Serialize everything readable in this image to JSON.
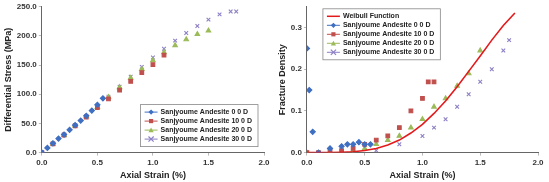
{
  "chart_data": [
    {
      "type": "scatter",
      "x_label": "Axial Strain (%)",
      "y_label": "Differential Stress (MPa)",
      "xlim": [
        0,
        2.0
      ],
      "xticks": [
        {
          "value": 0,
          "label": "0.0"
        },
        0.5,
        {
          "value": 1,
          "label": "1.0"
        },
        1.5,
        {
          "value": 2,
          "label": "2.0"
        }
      ],
      "ylim": [
        0,
        250
      ],
      "yticks": [
        {
          "value": 0,
          "label": "0.0"
        },
        {
          "value": 50,
          "label": "50.0"
        },
        {
          "value": 100,
          "label": "100.0"
        },
        {
          "value": 150,
          "label": "150.0"
        },
        {
          "value": 200,
          "label": "200.0"
        },
        {
          "value": 250,
          "label": "250.0"
        }
      ],
      "grid": false,
      "legend": "lower right",
      "series": [
        {
          "name": "Sanjyoume Andesite 0 0 D",
          "color": "#3f6fc2",
          "marker": "diamond",
          "x": [
            0,
            0.05,
            0.1,
            0.15,
            0.2,
            0.25,
            0.3,
            0.35,
            0.4,
            0.45,
            0.5,
            0.55
          ],
          "values": [
            0,
            8,
            16,
            24,
            31,
            39,
            47,
            55,
            63,
            72,
            82,
            93
          ]
        },
        {
          "name": "Sanjyoume Andesite 10 0 D",
          "color": "#c0504d",
          "marker": "square",
          "x": [
            0,
            0.1,
            0.2,
            0.3,
            0.4,
            0.5,
            0.6,
            0.7,
            0.8,
            0.9,
            1.0,
            1.1
          ],
          "values": [
            0,
            15,
            30,
            46,
            61,
            77,
            92,
            107,
            122,
            137,
            151,
            167
          ]
        },
        {
          "name": "Sanjyoume Andesite 20 0 D",
          "color": "#9bbb59",
          "marker": "triangle",
          "x": [
            0,
            0.1,
            0.2,
            0.3,
            0.4,
            0.5,
            0.6,
            0.7,
            0.8,
            0.9,
            1.0,
            1.1,
            1.2,
            1.3,
            1.4,
            1.5
          ],
          "values": [
            0,
            15,
            30,
            46,
            62,
            78,
            95,
            112,
            128,
            143,
            158,
            172,
            184,
            194,
            203,
            209
          ]
        },
        {
          "name": "Sanjyoume Andesite 30 0 D",
          "color": "#8c7fc4",
          "marker": "x",
          "x": [
            0,
            0.1,
            0.2,
            0.3,
            0.4,
            0.5,
            0.6,
            0.7,
            0.8,
            0.9,
            1.0,
            1.1,
            1.2,
            1.3,
            1.4,
            1.5,
            1.6,
            1.7,
            1.75
          ],
          "values": [
            0,
            15,
            31,
            47,
            63,
            79,
            96,
            113,
            130,
            147,
            163,
            178,
            192,
            205,
            217,
            228,
            237,
            242,
            242
          ]
        }
      ]
    },
    {
      "type": "scatter",
      "x_label": "Axial Strain (%)",
      "y_label": "Fracture Density",
      "xlim": [
        0,
        2.0
      ],
      "xticks": [
        {
          "value": 0,
          "label": "0.0"
        },
        0.5,
        {
          "value": 1,
          "label": "1.0"
        },
        1.5,
        {
          "value": 2,
          "label": "2.0"
        }
      ],
      "ylim": [
        0,
        0.35
      ],
      "yticks": [
        {
          "value": 0,
          "label": "0.0"
        },
        0.1,
        0.2,
        0.3
      ],
      "grid": false,
      "legend": "upper left",
      "series": [
        {
          "name": "Weibull Function",
          "color": "#e31a1c",
          "type": "line",
          "marker": "none",
          "line_style": "solid",
          "x": [
            0,
            0.1,
            0.2,
            0.3,
            0.4,
            0.5,
            0.6,
            0.7,
            0.8,
            0.9,
            1.0,
            1.1,
            1.2,
            1.3,
            1.4,
            1.5,
            1.6,
            1.7,
            1.8
          ],
          "values": [
            0,
            0,
            0,
            0.001,
            0.002,
            0.005,
            0.01,
            0.018,
            0.03,
            0.047,
            0.068,
            0.094,
            0.124,
            0.158,
            0.195,
            0.232,
            0.27,
            0.305,
            0.335
          ]
        },
        {
          "name": "Sanjyoume Andesite 0 0 D",
          "color": "#3f6fc2",
          "marker": "diamond",
          "x": [
            0,
            0.02,
            0.05,
            0.1,
            0.2,
            0.3,
            0.35,
            0.4,
            0.45,
            0.5,
            0.55
          ],
          "values": [
            0.25,
            0.15,
            0.05,
            0,
            0.01,
            0.015,
            0.02,
            0.02,
            0.025,
            0.02,
            0.02
          ]
        },
        {
          "name": "Sanjyoume Andesite 10 0 D",
          "color": "#c0504d",
          "marker": "square",
          "x": [
            0,
            0.1,
            0.2,
            0.3,
            0.4,
            0.5,
            0.6,
            0.7,
            0.8,
            0.9,
            1.0,
            1.05,
            1.1
          ],
          "values": [
            0,
            0,
            0.005,
            0.005,
            0.01,
            0.02,
            0.03,
            0.04,
            0.06,
            0.1,
            0.13,
            0.17,
            0.17
          ]
        },
        {
          "name": "Sanjyoume Andesite 20 0 D",
          "color": "#9bbb59",
          "marker": "triangle",
          "x": [
            0,
            0.2,
            0.4,
            0.5,
            0.6,
            0.7,
            0.8,
            0.9,
            1.0,
            1.1,
            1.2,
            1.3,
            1.4,
            1.5
          ],
          "values": [
            0,
            0,
            0.005,
            0.01,
            0.02,
            0.03,
            0.04,
            0.06,
            0.08,
            0.11,
            0.13,
            0.16,
            0.19,
            0.245
          ]
        },
        {
          "name": "Sanjyoume Andesite 30 0 D",
          "color": "#8c7fc4",
          "marker": "x",
          "x": [
            0,
            0.2,
            0.4,
            0.6,
            0.8,
            1.0,
            1.1,
            1.2,
            1.3,
            1.4,
            1.5,
            1.6,
            1.7,
            1.75
          ],
          "values": [
            0,
            0,
            0,
            0.005,
            0.02,
            0.04,
            0.06,
            0.08,
            0.11,
            0.14,
            0.17,
            0.2,
            0.245,
            0.27
          ]
        }
      ]
    }
  ]
}
